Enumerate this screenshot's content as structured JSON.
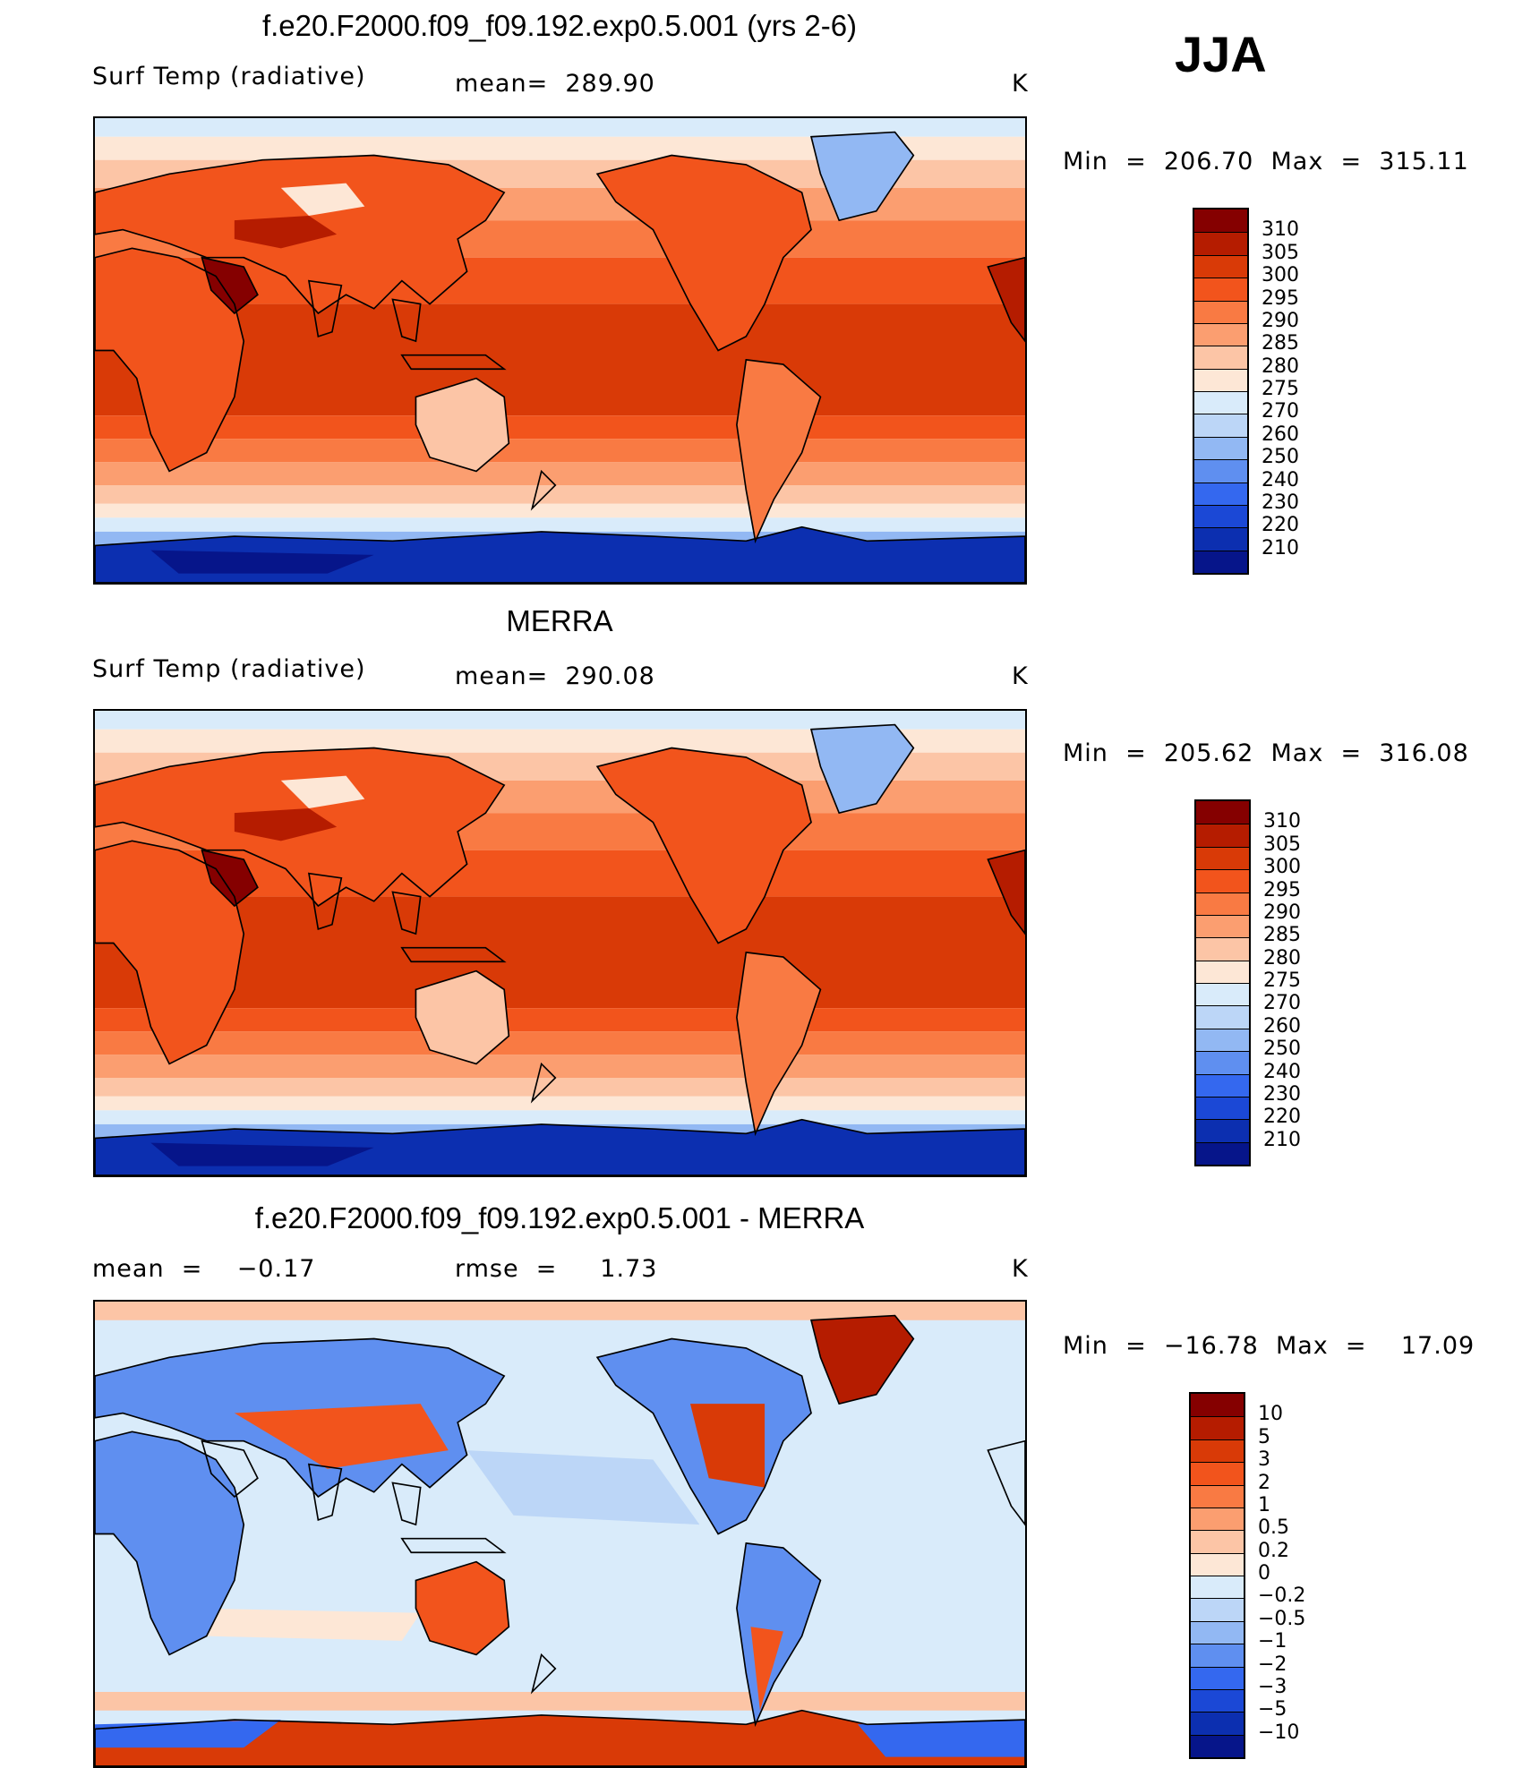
{
  "season": "JJA",
  "panels": [
    {
      "title": "f.e20.F2000.f09_f09.192.exp0.5.001 (yrs 2-6)",
      "left_label": "Surf Temp (radiative)",
      "center_label": "mean=  289.90",
      "unit": "K",
      "minmax": "Min  =  206.70  Max  =  315.11",
      "levels": [
        "310",
        "305",
        "300",
        "295",
        "290",
        "285",
        "280",
        "275",
        "270",
        "260",
        "250",
        "240",
        "230",
        "220",
        "210"
      ],
      "colors": [
        "#850000",
        "#b51c00",
        "#d93a07",
        "#f2541c",
        "#f97a43",
        "#fb9e70",
        "#fcc5a6",
        "#fde7d6",
        "#d9ebfa",
        "#bcd6f7",
        "#92b8f3",
        "#5f8ff0",
        "#3468ef",
        "#1b48d6",
        "#0c2fb0",
        "#06158a"
      ]
    },
    {
      "title": "MERRA",
      "left_label": "Surf Temp (radiative)",
      "center_label": "mean=  290.08",
      "unit": "K",
      "minmax": "Min  =  205.62  Max  =  316.08",
      "levels": [
        "310",
        "305",
        "300",
        "295",
        "290",
        "285",
        "280",
        "275",
        "270",
        "260",
        "250",
        "240",
        "230",
        "220",
        "210"
      ],
      "colors": [
        "#850000",
        "#b51c00",
        "#d93a07",
        "#f2541c",
        "#f97a43",
        "#fb9e70",
        "#fcc5a6",
        "#fde7d6",
        "#d9ebfa",
        "#bcd6f7",
        "#92b8f3",
        "#5f8ff0",
        "#3468ef",
        "#1b48d6",
        "#0c2fb0",
        "#06158a"
      ]
    },
    {
      "title": "f.e20.F2000.f09_f09.192.exp0.5.001 - MERRA",
      "left_label": "mean  =    −0.17",
      "center_label": "rmse  =     1.73",
      "unit": "K",
      "minmax": "Min  =  −16.78  Max  =    17.09",
      "levels": [
        "10",
        "5",
        "3",
        "2",
        "1",
        "0.5",
        "0.2",
        "0",
        "−0.2",
        "−0.5",
        "−1",
        "−2",
        "−3",
        "−5",
        "−10"
      ],
      "colors": [
        "#850000",
        "#b51c00",
        "#d93a07",
        "#f2541c",
        "#f97a43",
        "#fb9e70",
        "#fcc5a6",
        "#fde7d6",
        "#d9ebfa",
        "#bcd6f7",
        "#92b8f3",
        "#5f8ff0",
        "#3468ef",
        "#1b48d6",
        "#0c2fb0",
        "#06158a"
      ]
    }
  ]
}
